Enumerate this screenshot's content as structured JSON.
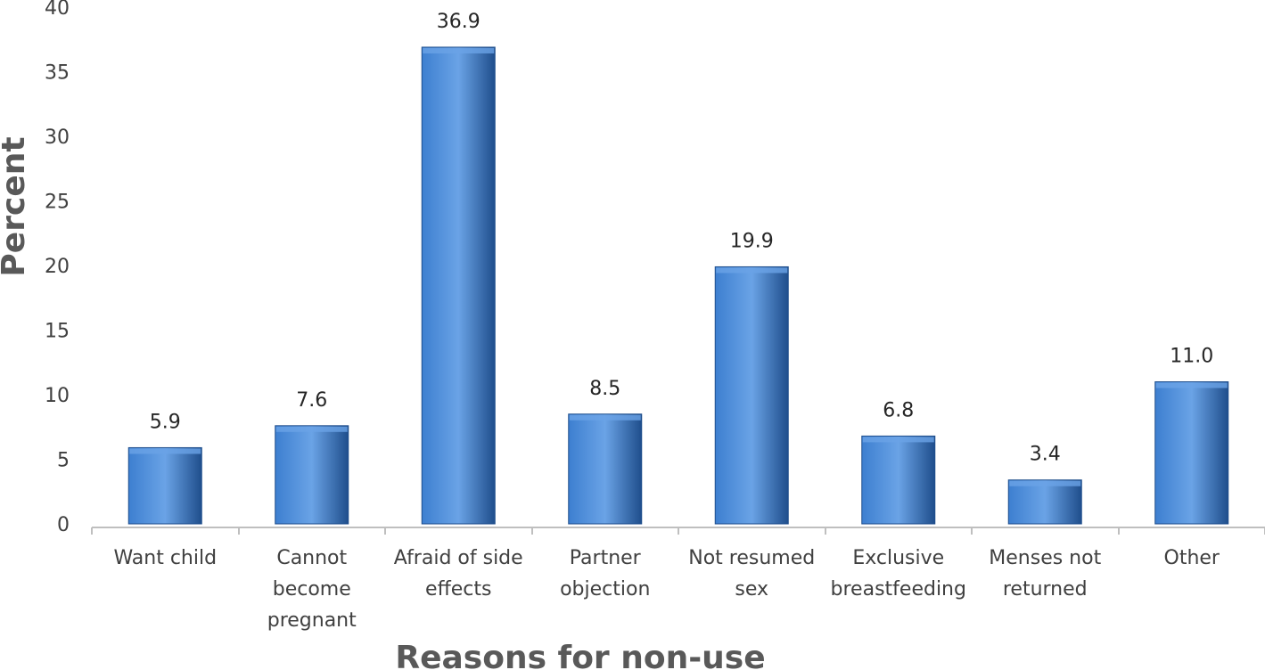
{
  "chart_data": {
    "type": "bar",
    "title": "",
    "xlabel": "Reasons for non-use",
    "ylabel": "Percent",
    "ylim": [
      0,
      40
    ],
    "ytick_step": 5,
    "yticks": [
      "0",
      "5",
      "10",
      "15",
      "20",
      "25",
      "30",
      "35",
      "40"
    ],
    "categories": [
      [
        "Want child"
      ],
      [
        "Cannot",
        "become",
        "pregnant"
      ],
      [
        "Afraid of side",
        "effects"
      ],
      [
        "Partner",
        "objection"
      ],
      [
        "Not resumed",
        "sex"
      ],
      [
        "Exclusive",
        "breastfeeding"
      ],
      [
        "Menses not",
        "returned"
      ],
      [
        "Other"
      ]
    ],
    "values": [
      5.9,
      7.6,
      36.9,
      8.5,
      19.9,
      6.8,
      3.4,
      11.0
    ],
    "data_labels": [
      "5.9",
      "7.6",
      "36.9",
      "8.5",
      "19.9",
      "6.8",
      "3.4",
      "11.0"
    ],
    "grid": false,
    "colors": {
      "bar_light": "#6aa3e6",
      "bar_mid": "#3d7fd0",
      "bar_dark": "#1f4e8c",
      "axis": "#bfbfbf"
    }
  }
}
